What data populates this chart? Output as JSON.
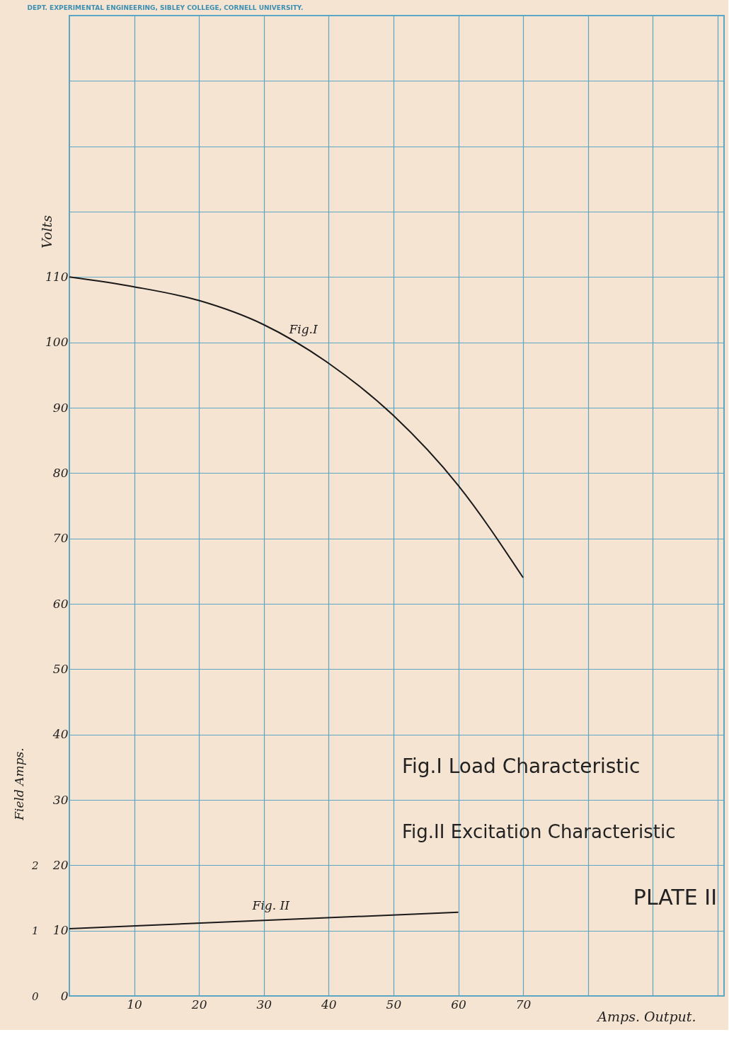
{
  "chart_data": {
    "type": "line",
    "title": "DEPT. EXPERIMENTAL ENGINEERING, SIBLEY COLLEGE, CORNELL UNIVERSITY.",
    "xlabel": "Amps. Output.",
    "ylabel": "Volts",
    "y2label": "Field Amps.",
    "series": [
      {
        "name": "Fig.I",
        "color": "#1a1a1a",
        "x": [
          0,
          10,
          20,
          30,
          40,
          50,
          60,
          70
        ],
        "values": [
          110,
          108.5,
          106.4,
          102.7,
          96.8,
          88.8,
          78.1,
          64
        ]
      },
      {
        "name": "Fig. II",
        "color": "#1a1a1a",
        "axis": "y2",
        "x": [
          0,
          60
        ],
        "values": [
          1.03,
          1.28
        ]
      }
    ],
    "xlim": [
      0,
      101
    ],
    "ylim": [
      0,
      150
    ],
    "y2lim": [
      0,
      15
    ],
    "xticks": [
      10,
      20,
      30,
      40,
      50,
      60,
      70,
      {
        "value": 80,
        "label": null
      },
      {
        "value": 90,
        "label": null
      },
      {
        "value": 100,
        "label": null
      }
    ],
    "yticks": [
      0,
      10,
      20,
      30,
      40,
      50,
      60,
      70,
      80,
      90,
      100,
      110,
      {
        "value": 120,
        "label": null
      },
      {
        "value": 130,
        "label": null
      },
      {
        "value": 140,
        "label": null
      },
      {
        "value": 150,
        "label": null
      }
    ],
    "y2ticks": [
      0,
      1,
      2
    ],
    "grid": true,
    "legend": false,
    "marker": "none",
    "line_style": "solid",
    "annotations": [
      "Fig.I Load Characteristic",
      "Fig.II Excitation Characteristic",
      "PLATE II"
    ]
  }
}
